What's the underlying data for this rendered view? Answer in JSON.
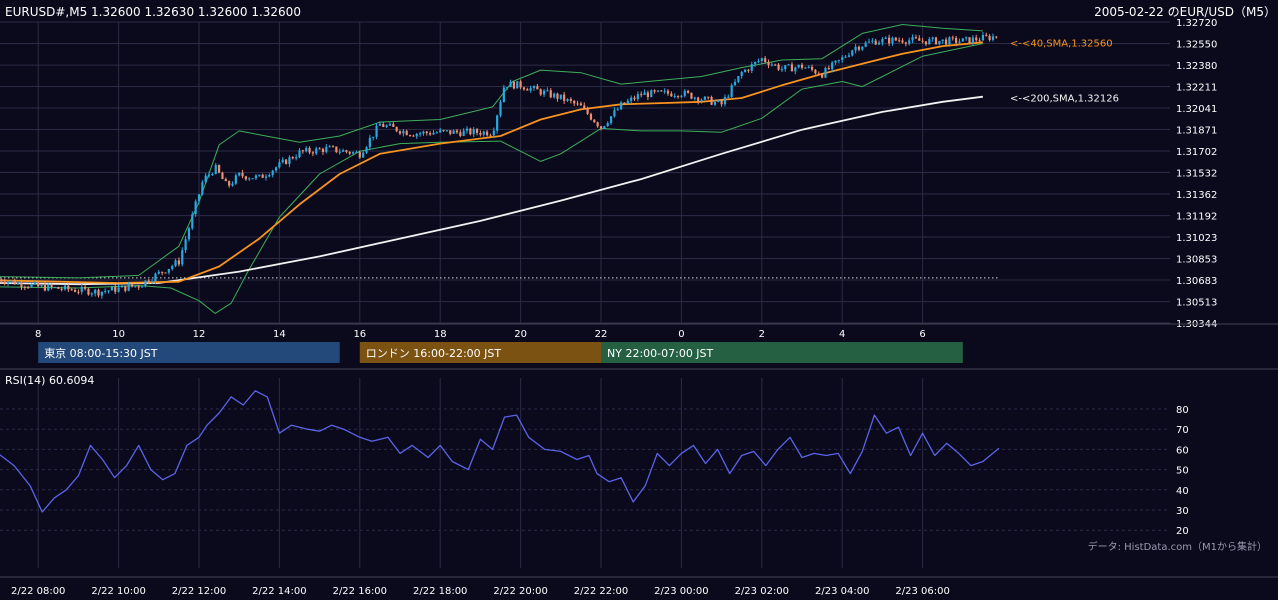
{
  "header": {
    "symbol_info": "EURUSD#,M5 1.32600 1.32630 1.32600 1.32600",
    "title": "2005-02-22 のEUR/USD（M5）"
  },
  "colors": {
    "background": "#0a0a1c",
    "grid": "#2b2b45",
    "candle_up": "#29a9e0",
    "candle_down": "#f08e6e",
    "sma40": "#f7931e",
    "sma200": "#f2f2f2",
    "bollinger": "#3fae5a",
    "rsi": "#5b63e8",
    "tokyo_session": "#23497a",
    "london_session": "#7c5212",
    "ny_session": "#256043",
    "text": "#ffffff",
    "muted_text": "#9a9ab0"
  },
  "sessions": [
    {
      "label": "東京 08:00-15:30 JST",
      "start": 8.0,
      "end": 15.5,
      "color_key": "tokyo_session"
    },
    {
      "label": "ロンドン 16:00-22:00 JST",
      "start": 16.0,
      "end": 22.0,
      "color_key": "london_session"
    },
    {
      "label": "NY 22:00-07:00 JST",
      "start": 22.0,
      "end": 31.0,
      "color_key": "ny_session"
    }
  ],
  "main_axis": {
    "time_ticks": [
      {
        "t": 8,
        "label": "8"
      },
      {
        "t": 10,
        "label": "10"
      },
      {
        "t": 12,
        "label": "12"
      },
      {
        "t": 14,
        "label": "14"
      },
      {
        "t": 16,
        "label": "16"
      },
      {
        "t": 18,
        "label": "18"
      },
      {
        "t": 20,
        "label": "20"
      },
      {
        "t": 22,
        "label": "22"
      },
      {
        "t": 24,
        "label": "0"
      },
      {
        "t": 26,
        "label": "2"
      },
      {
        "t": 28,
        "label": "4"
      },
      {
        "t": 30,
        "label": "6"
      }
    ]
  },
  "rsi_panel": {
    "label": "RSI(14) 60.6094",
    "ticks": [
      80,
      70,
      60,
      50,
      40,
      30,
      20
    ]
  },
  "bottom_axis": {
    "ticks": [
      {
        "t": 8,
        "label": "2/22 08:00"
      },
      {
        "t": 10,
        "label": "2/22 10:00"
      },
      {
        "t": 12,
        "label": "2/22 12:00"
      },
      {
        "t": 14,
        "label": "2/22 14:00"
      },
      {
        "t": 16,
        "label": "2/22 16:00"
      },
      {
        "t": 18,
        "label": "2/22 18:00"
      },
      {
        "t": 20,
        "label": "2/22 20:00"
      },
      {
        "t": 22,
        "label": "2/22 22:00"
      },
      {
        "t": 24,
        "label": "2/23 00:00"
      },
      {
        "t": 26,
        "label": "2/23 02:00"
      },
      {
        "t": 28,
        "label": "2/23 04:00"
      },
      {
        "t": 30,
        "label": "2/23 06:00"
      }
    ]
  },
  "footer": {
    "source": "データ: HistData.com（M1から集計）"
  },
  "chart_data": [
    {
      "type": "candlestick",
      "title": "2005-02-22 のEUR/USD（M5）",
      "symbol": "EURUSD#",
      "timeframe": "M5",
      "ohlc_last": {
        "open": 1.326,
        "high": 1.3263,
        "low": 1.326,
        "close": 1.326
      },
      "x_unit": "hours since 2/22 00:00 JST",
      "xlim": [
        7.0,
        31.9
      ],
      "ylim": [
        1.30344,
        1.3272
      ],
      "y_ticks": [
        1.3272,
        1.3255,
        1.3238,
        1.32211,
        1.32041,
        1.31871,
        1.31702,
        1.31532,
        1.31362,
        1.31192,
        1.31023,
        1.30853,
        1.30683,
        1.30513,
        1.30344
      ],
      "reference_line": {
        "value": 1.307,
        "style": "dotted"
      },
      "series": [
        {
          "name": "SMA(40)",
          "label": "<-<40,SMA,1.32560",
          "last_value": 1.3256,
          "x": [
            7.0,
            10.0,
            11.5,
            12.5,
            13.5,
            14.5,
            15.5,
            16.5,
            18.0,
            19.5,
            20.5,
            21.5,
            22.5,
            23.5,
            24.5,
            25.5,
            26.5,
            27.5,
            28.5,
            29.5,
            30.5,
            31.5
          ],
          "y": [
            1.3068,
            1.3066,
            1.3067,
            1.3079,
            1.3101,
            1.3128,
            1.3152,
            1.3168,
            1.3176,
            1.3182,
            1.3195,
            1.3203,
            1.3207,
            1.3208,
            1.3209,
            1.3212,
            1.3222,
            1.3231,
            1.3239,
            1.3247,
            1.3253,
            1.3256
          ]
        },
        {
          "name": "SMA(200)",
          "label": "<-<200,SMA,1.32126",
          "last_value": 1.32126,
          "x": [
            7.0,
            9.0,
            11.0,
            13.0,
            15.0,
            17.0,
            19.0,
            21.0,
            23.0,
            25.0,
            27.0,
            29.0,
            30.5,
            31.5
          ],
          "y": [
            1.3066,
            1.3065,
            1.3066,
            1.3075,
            1.3087,
            1.3101,
            1.3115,
            1.3131,
            1.3148,
            1.3168,
            1.3187,
            1.3201,
            1.3209,
            1.3213
          ]
        },
        {
          "name": "Bollinger upper",
          "x": [
            7.0,
            9.0,
            10.5,
            11.5,
            12.0,
            12.5,
            13.0,
            13.5,
            14.5,
            15.5,
            16.5,
            18.0,
            19.3,
            19.8,
            20.5,
            21.5,
            22.5,
            23.5,
            24.5,
            25.5,
            26.5,
            27.5,
            28.5,
            29.5,
            30.5,
            31.5
          ],
          "y": [
            1.3071,
            1.307,
            1.3072,
            1.3095,
            1.313,
            1.3175,
            1.3186,
            1.3183,
            1.3177,
            1.3182,
            1.3193,
            1.3195,
            1.3205,
            1.3225,
            1.3234,
            1.3232,
            1.3223,
            1.3226,
            1.3229,
            1.3236,
            1.3242,
            1.3243,
            1.3263,
            1.327,
            1.3267,
            1.3265
          ]
        },
        {
          "name": "Bollinger lower",
          "x": [
            7.0,
            9.0,
            10.5,
            11.3,
            12.0,
            12.4,
            12.8,
            13.2,
            14.0,
            15.0,
            16.0,
            17.0,
            18.0,
            19.5,
            20.5,
            21.0,
            22.0,
            23.0,
            24.0,
            25.0,
            26.0,
            27.0,
            28.0,
            28.5,
            29.0,
            30.0,
            31.5
          ],
          "y": [
            1.3063,
            1.3062,
            1.3064,
            1.3062,
            1.3052,
            1.3042,
            1.305,
            1.3074,
            1.3118,
            1.3152,
            1.317,
            1.3176,
            1.3177,
            1.3178,
            1.3162,
            1.3168,
            1.3188,
            1.3186,
            1.3186,
            1.3185,
            1.3196,
            1.3219,
            1.3225,
            1.3221,
            1.3229,
            1.3245,
            1.3255
          ]
        },
        {
          "name": "Price path (candles)",
          "x": [
            7.0,
            8.0,
            9.5,
            10.5,
            11.5,
            11.8,
            12.1,
            12.4,
            12.7,
            13.0,
            13.5,
            14.5,
            15.2,
            16.0,
            16.5,
            17.3,
            18.0,
            19.3,
            19.6,
            20.0,
            21.0,
            21.5,
            22.0,
            22.5,
            23.0,
            24.0,
            25.0,
            25.5,
            26.0,
            26.5,
            27.0,
            27.5,
            28.0,
            28.3,
            28.8,
            29.5,
            30.0,
            31.0,
            31.9
          ],
          "y": [
            1.3069,
            1.3063,
            1.3059,
            1.3064,
            1.3083,
            1.3115,
            1.3147,
            1.3157,
            1.3142,
            1.3151,
            1.3149,
            1.3169,
            1.3172,
            1.3168,
            1.3191,
            1.3184,
            1.3185,
            1.3185,
            1.3223,
            1.3222,
            1.3212,
            1.3205,
            1.3189,
            1.3206,
            1.3215,
            1.3216,
            1.3207,
            1.3232,
            1.3243,
            1.3235,
            1.3237,
            1.3231,
            1.3243,
            1.3252,
            1.3257,
            1.3258,
            1.3257,
            1.3257,
            1.3261
          ]
        }
      ]
    },
    {
      "type": "line",
      "title": "RSI(14) 60.6094",
      "x_unit": "hours since 2/22 00:00 JST",
      "xlim": [
        7.0,
        31.9
      ],
      "ylim": [
        17,
        92
      ],
      "y_ticks": [
        80,
        70,
        60,
        50,
        40,
        30,
        20
      ],
      "series": [
        {
          "name": "RSI(14)",
          "last_value": 60.6094,
          "x": [
            7.0,
            7.4,
            7.8,
            8.1,
            8.4,
            8.7,
            9.0,
            9.3,
            9.6,
            9.9,
            10.2,
            10.5,
            10.8,
            11.1,
            11.4,
            11.7,
            12.0,
            12.2,
            12.5,
            12.8,
            13.1,
            13.4,
            13.7,
            14.0,
            14.3,
            14.7,
            15.0,
            15.3,
            15.6,
            16.0,
            16.3,
            16.7,
            17.0,
            17.3,
            17.7,
            18.0,
            18.3,
            18.7,
            19.0,
            19.3,
            19.6,
            19.9,
            20.2,
            20.6,
            21.0,
            21.4,
            21.7,
            21.9,
            22.2,
            22.5,
            22.8,
            23.1,
            23.4,
            23.7,
            24.0,
            24.3,
            24.6,
            24.9,
            25.2,
            25.5,
            25.8,
            26.1,
            26.4,
            26.7,
            27.0,
            27.3,
            27.6,
            27.9,
            28.2,
            28.5,
            28.8,
            29.1,
            29.4,
            29.7,
            30.0,
            30.3,
            30.6,
            30.9,
            31.2,
            31.5,
            31.9
          ],
          "y": [
            58,
            52,
            42,
            29,
            36,
            40,
            47,
            62,
            55,
            46,
            52,
            62,
            50,
            45,
            48,
            62,
            66,
            72,
            78,
            86,
            82,
            89,
            86,
            68,
            72,
            70,
            69,
            72,
            70,
            66,
            64,
            66,
            58,
            62,
            56,
            62,
            54,
            50,
            65,
            60,
            76,
            77,
            66,
            60,
            59,
            55,
            57,
            48,
            44,
            46,
            34,
            42,
            58,
            52,
            58,
            62,
            53,
            60,
            48,
            57,
            59,
            52,
            60,
            66,
            56,
            58,
            57,
            58,
            48,
            59,
            77,
            68,
            71,
            57,
            68,
            57,
            63,
            58,
            52,
            54,
            60.6
          ]
        }
      ]
    }
  ]
}
